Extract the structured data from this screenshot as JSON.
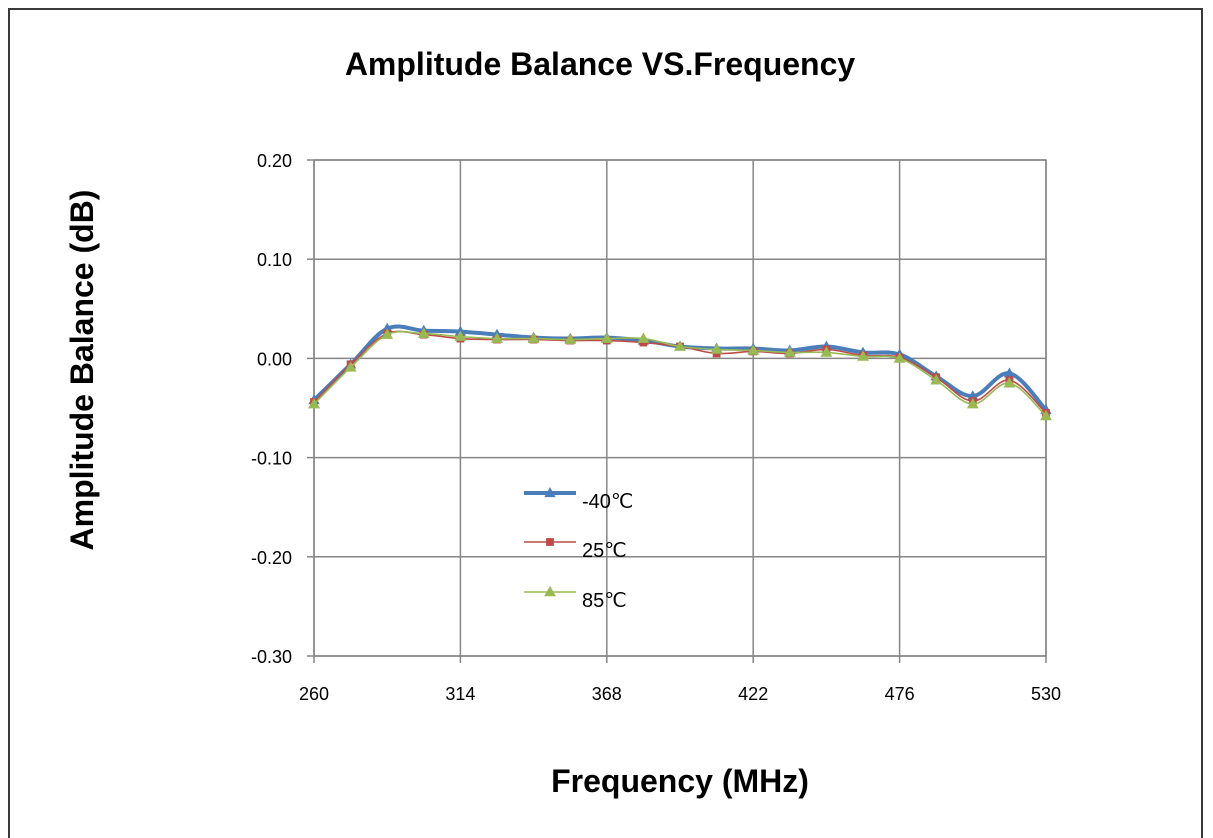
{
  "chart_data": {
    "type": "line",
    "title": "Amplitude Balance VS.Frequency",
    "xlabel": "Frequency (MHz)",
    "ylabel": "Amplitude Balance (dB)",
    "xlim": [
      260,
      530
    ],
    "ylim": [
      -0.3,
      0.2
    ],
    "xticks": [
      "260",
      "314",
      "368",
      "422",
      "476",
      "530"
    ],
    "yticks": [
      "0.20",
      "0.10",
      "0.00",
      "-0.10",
      "-0.20",
      "-0.30"
    ],
    "grid": true,
    "legend_position": "center-left",
    "x": [
      260,
      273.5,
      287,
      300.5,
      314,
      327.5,
      341,
      354.5,
      368,
      381.5,
      395,
      408.5,
      422,
      435.5,
      449,
      462.5,
      476,
      489.5,
      503,
      516.5,
      530
    ],
    "series": [
      {
        "name": "-40℃",
        "color": "#4a7ebb",
        "marker": "triangle",
        "values": [
          -0.042,
          -0.006,
          0.03,
          0.028,
          0.027,
          0.024,
          0.021,
          0.02,
          0.021,
          0.018,
          0.012,
          0.01,
          0.01,
          0.008,
          0.012,
          0.006,
          0.004,
          -0.018,
          -0.038,
          -0.015,
          -0.052
        ]
      },
      {
        "name": "25℃",
        "color": "#be4b48",
        "marker": "square",
        "values": [
          -0.044,
          -0.006,
          0.025,
          0.024,
          0.02,
          0.019,
          0.019,
          0.018,
          0.018,
          0.016,
          0.012,
          0.005,
          0.007,
          0.005,
          0.009,
          0.003,
          0.001,
          -0.019,
          -0.043,
          -0.022,
          -0.055
        ]
      },
      {
        "name": "85℃",
        "color": "#98b954",
        "marker": "triangle",
        "values": [
          -0.046,
          -0.009,
          0.024,
          0.025,
          0.022,
          0.02,
          0.02,
          0.019,
          0.02,
          0.02,
          0.012,
          0.009,
          0.008,
          0.006,
          0.006,
          0.002,
          0.0,
          -0.022,
          -0.046,
          -0.025,
          -0.058
        ]
      }
    ]
  }
}
